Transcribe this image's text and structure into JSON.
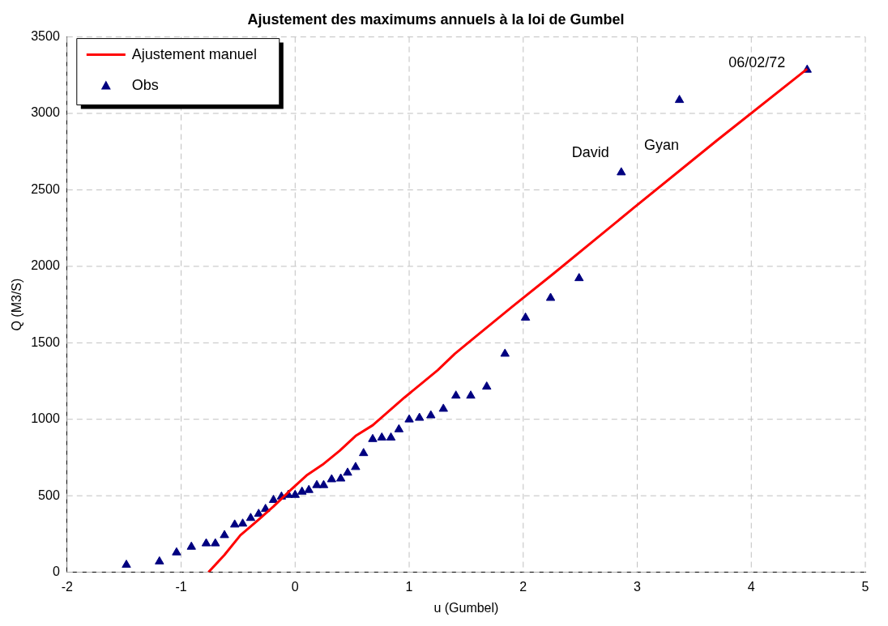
{
  "chart_data": {
    "type": "scatter",
    "title": "Ajustement des maximums annuels à la loi de Gumbel",
    "xlabel": "u (Gumbel)",
    "ylabel": "Q (M3/S)",
    "xlim": [
      -2,
      5
    ],
    "xticks": [
      -2,
      -1,
      0,
      1,
      2,
      3,
      4,
      5
    ],
    "ylim": [
      0,
      3500
    ],
    "yticks": [
      0,
      500,
      1000,
      1500,
      2000,
      2500,
      3000,
      3500
    ],
    "grid": true,
    "legend": "top left",
    "marker": "triangle",
    "series": [
      {
        "name": "Ajustement manuel",
        "type": "line",
        "marker": "none",
        "color": "#ff0000",
        "x": [
          -0.76,
          -0.62,
          -0.48,
          -0.33,
          -0.19,
          -0.04,
          0.1,
          0.24,
          0.39,
          0.53,
          0.68,
          0.82,
          0.96,
          1.11,
          1.25,
          1.4,
          1.54,
          1.9,
          2.26,
          2.98,
          3.7,
          4.49
        ],
        "values": [
          0,
          113,
          242,
          338,
          430,
          537,
          633,
          703,
          794,
          891,
          961,
          1052,
          1143,
          1235,
          1321,
          1428,
          1514,
          1734,
          1949,
          2389,
          2824,
          3291
        ]
      },
      {
        "name": "Obs",
        "type": "scatter",
        "color": "#000080",
        "x": [
          -1.48,
          -1.19,
          -1.04,
          -0.91,
          -0.78,
          -0.7,
          -0.62,
          -0.53,
          -0.46,
          -0.39,
          -0.32,
          -0.26,
          -0.19,
          -0.12,
          -0.06,
          0,
          0.06,
          0.12,
          0.19,
          0.25,
          0.32,
          0.4,
          0.46,
          0.53,
          0.6,
          0.68,
          0.76,
          0.84,
          0.91,
          1.0,
          1.09,
          1.19,
          1.3,
          1.41,
          1.54,
          1.68,
          1.84,
          2.02,
          2.24,
          2.49,
          2.86,
          3.37,
          4.49
        ],
        "values": [
          48,
          70,
          129,
          166,
          188,
          188,
          242,
          311,
          317,
          354,
          381,
          413,
          472,
          494,
          505,
          505,
          526,
          537,
          569,
          569,
          607,
          612,
          650,
          687,
          778,
          870,
          880,
          880,
          934,
          998,
          1009,
          1025,
          1068,
          1154,
          1154,
          1213,
          1428,
          1664,
          1793,
          1922,
          2614,
          3087,
          3285
        ]
      }
    ],
    "annotations": [
      {
        "text": "06/02/72",
        "x": 4.49,
        "y": 3285
      },
      {
        "text": "David",
        "x": 2.86,
        "y": 2614
      },
      {
        "text": "Gyan",
        "x": 3.37,
        "y": 3087
      }
    ]
  }
}
